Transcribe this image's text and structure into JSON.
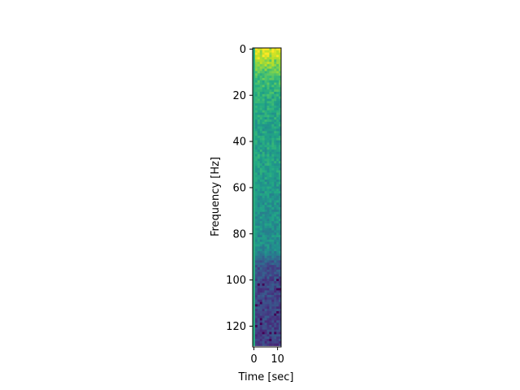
{
  "chart_data": {
    "type": "heatmap",
    "title": "",
    "xlabel": "Time [sec]",
    "ylabel": "Frequency [Hz]",
    "x_range": [
      -0.5,
      11.5
    ],
    "y_range": [
      129,
      -0.5
    ],
    "y_inverted": true,
    "x_ticks": [
      0,
      10
    ],
    "x_tick_labels": [
      "0",
      "10"
    ],
    "y_ticks": [
      0,
      20,
      40,
      60,
      80,
      100,
      120
    ],
    "y_tick_labels": [
      "0",
      "20",
      "40",
      "60",
      "80",
      "100",
      "120"
    ],
    "colormap": "viridis",
    "n_time_bins": 12,
    "n_freq_bins": 129,
    "edge_column_value": 0.62,
    "noise_amplitude": 0.09,
    "profile_note": "intensity vs frequency (0-1), edge column constant",
    "profile": [
      [
        0,
        0.97
      ],
      [
        2,
        0.95
      ],
      [
        4,
        0.92
      ],
      [
        6,
        0.85
      ],
      [
        8,
        0.78
      ],
      [
        12,
        0.7
      ],
      [
        16,
        0.66
      ],
      [
        20,
        0.62
      ],
      [
        28,
        0.59
      ],
      [
        36,
        0.57
      ],
      [
        46,
        0.58
      ],
      [
        54,
        0.55
      ],
      [
        62,
        0.53
      ],
      [
        70,
        0.52
      ],
      [
        78,
        0.5
      ],
      [
        84,
        0.49
      ],
      [
        88,
        0.46
      ],
      [
        91,
        0.33
      ],
      [
        94,
        0.25
      ],
      [
        100,
        0.22
      ],
      [
        110,
        0.2
      ],
      [
        128,
        0.19
      ]
    ],
    "grid": false,
    "legend": "none"
  }
}
